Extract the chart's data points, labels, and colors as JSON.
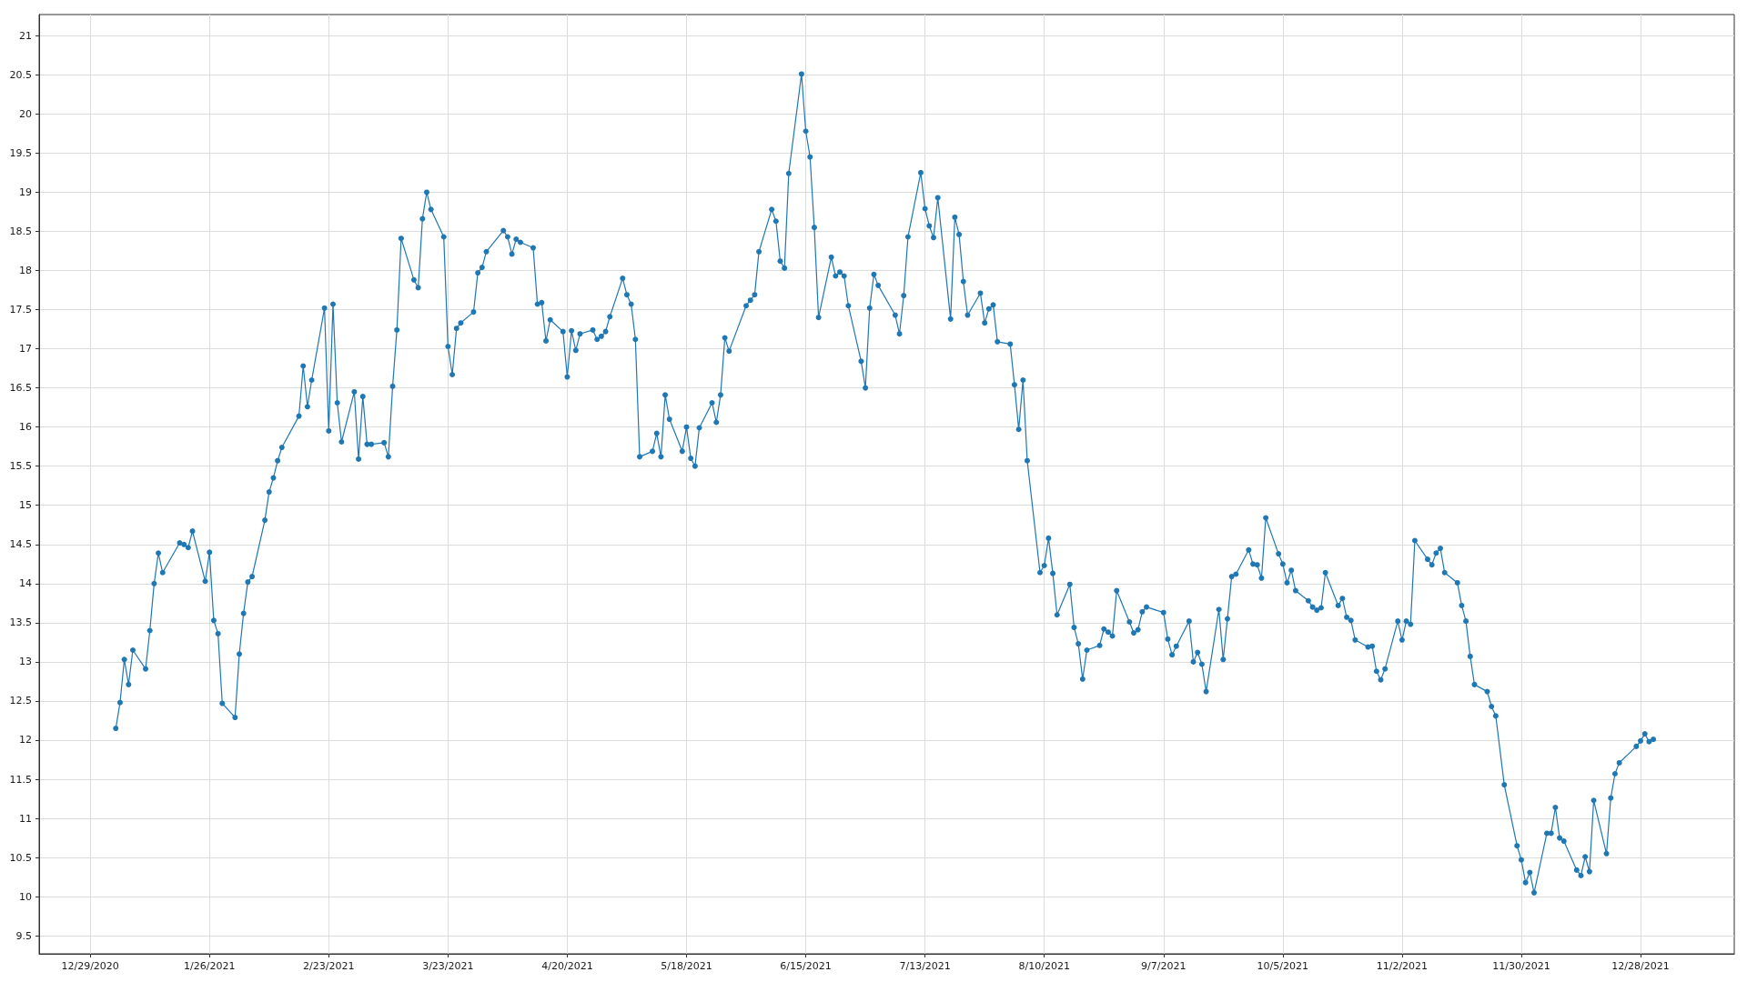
{
  "chart_data": {
    "type": "line",
    "color": "#1f77b4",
    "marker": "circle",
    "line_style": "solid",
    "grid": true,
    "xlim": [
      "2020-12-17",
      "2022-01-19"
    ],
    "xticks": [
      {
        "value": "2020-12-29",
        "label": "12/29/2020"
      },
      {
        "value": "2021-01-26",
        "label": "1/26/2021"
      },
      {
        "value": "2021-02-23",
        "label": "2/23/2021"
      },
      {
        "value": "2021-03-23",
        "label": "3/23/2021"
      },
      {
        "value": "2021-04-20",
        "label": "4/20/2021"
      },
      {
        "value": "2021-05-18",
        "label": "5/18/2021"
      },
      {
        "value": "2021-06-15",
        "label": "6/15/2021"
      },
      {
        "value": "2021-07-13",
        "label": "7/13/2021"
      },
      {
        "value": "2021-08-10",
        "label": "8/10/2021"
      },
      {
        "value": "2021-09-07",
        "label": "9/7/2021"
      },
      {
        "value": "2021-10-05",
        "label": "10/5/2021"
      },
      {
        "value": "2021-11-02",
        "label": "11/2/2021"
      },
      {
        "value": "2021-11-30",
        "label": "11/30/2021"
      },
      {
        "value": "2021-12-28",
        "label": "12/28/2021"
      }
    ],
    "ylim": [
      9.27,
      21.27
    ],
    "yticks": [
      9.5,
      10,
      10.5,
      11,
      11.5,
      12,
      12.5,
      13,
      13.5,
      14,
      14.5,
      15,
      15.5,
      16,
      16.5,
      17,
      17.5,
      18,
      18.5,
      19,
      19.5,
      20,
      20.5,
      21
    ],
    "x": [
      "2021-01-04",
      "2021-01-05",
      "2021-01-06",
      "2021-01-07",
      "2021-01-08",
      "2021-01-11",
      "2021-01-12",
      "2021-01-13",
      "2021-01-14",
      "2021-01-15",
      "2021-01-19",
      "2021-01-20",
      "2021-01-21",
      "2021-01-22",
      "2021-01-25",
      "2021-01-26",
      "2021-01-27",
      "2021-01-28",
      "2021-01-29",
      "2021-02-01",
      "2021-02-02",
      "2021-02-03",
      "2021-02-04",
      "2021-02-05",
      "2021-02-08",
      "2021-02-09",
      "2021-02-10",
      "2021-02-11",
      "2021-02-12",
      "2021-02-16",
      "2021-02-17",
      "2021-02-18",
      "2021-02-19",
      "2021-02-22",
      "2021-02-23",
      "2021-02-24",
      "2021-02-25",
      "2021-02-26",
      "2021-03-01",
      "2021-03-02",
      "2021-03-03",
      "2021-03-04",
      "2021-03-05",
      "2021-03-08",
      "2021-03-09",
      "2021-03-10",
      "2021-03-11",
      "2021-03-12",
      "2021-03-15",
      "2021-03-16",
      "2021-03-17",
      "2021-03-18",
      "2021-03-19",
      "2021-03-22",
      "2021-03-23",
      "2021-03-24",
      "2021-03-25",
      "2021-03-26",
      "2021-03-29",
      "2021-03-30",
      "2021-03-31",
      "2021-04-01",
      "2021-04-05",
      "2021-04-06",
      "2021-04-07",
      "2021-04-08",
      "2021-04-09",
      "2021-04-12",
      "2021-04-13",
      "2021-04-14",
      "2021-04-15",
      "2021-04-16",
      "2021-04-19",
      "2021-04-20",
      "2021-04-21",
      "2021-04-22",
      "2021-04-23",
      "2021-04-26",
      "2021-04-27",
      "2021-04-28",
      "2021-04-29",
      "2021-04-30",
      "2021-05-03",
      "2021-05-04",
      "2021-05-05",
      "2021-05-06",
      "2021-05-07",
      "2021-05-10",
      "2021-05-11",
      "2021-05-12",
      "2021-05-13",
      "2021-05-14",
      "2021-05-17",
      "2021-05-18",
      "2021-05-19",
      "2021-05-20",
      "2021-05-21",
      "2021-05-24",
      "2021-05-25",
      "2021-05-26",
      "2021-05-27",
      "2021-05-28",
      "2021-06-01",
      "2021-06-02",
      "2021-06-03",
      "2021-06-04",
      "2021-06-07",
      "2021-06-08",
      "2021-06-09",
      "2021-06-10",
      "2021-06-11",
      "2021-06-14",
      "2021-06-15",
      "2021-06-16",
      "2021-06-17",
      "2021-06-18",
      "2021-06-21",
      "2021-06-22",
      "2021-06-23",
      "2021-06-24",
      "2021-06-25",
      "2021-06-28",
      "2021-06-29",
      "2021-06-30",
      "2021-07-01",
      "2021-07-02",
      "2021-07-06",
      "2021-07-07",
      "2021-07-08",
      "2021-07-09",
      "2021-07-12",
      "2021-07-13",
      "2021-07-14",
      "2021-07-15",
      "2021-07-16",
      "2021-07-19",
      "2021-07-20",
      "2021-07-21",
      "2021-07-22",
      "2021-07-23",
      "2021-07-26",
      "2021-07-27",
      "2021-07-28",
      "2021-07-29",
      "2021-07-30",
      "2021-08-02",
      "2021-08-03",
      "2021-08-04",
      "2021-08-05",
      "2021-08-06",
      "2021-08-09",
      "2021-08-10",
      "2021-08-11",
      "2021-08-12",
      "2021-08-13",
      "2021-08-16",
      "2021-08-17",
      "2021-08-18",
      "2021-08-19",
      "2021-08-20",
      "2021-08-23",
      "2021-08-24",
      "2021-08-25",
      "2021-08-26",
      "2021-08-27",
      "2021-08-30",
      "2021-08-31",
      "2021-09-01",
      "2021-09-02",
      "2021-09-03",
      "2021-09-07",
      "2021-09-08",
      "2021-09-09",
      "2021-09-10",
      "2021-09-13",
      "2021-09-14",
      "2021-09-15",
      "2021-09-16",
      "2021-09-17",
      "2021-09-20",
      "2021-09-21",
      "2021-09-22",
      "2021-09-23",
      "2021-09-24",
      "2021-09-27",
      "2021-09-28",
      "2021-09-29",
      "2021-09-30",
      "2021-10-01",
      "2021-10-04",
      "2021-10-05",
      "2021-10-06",
      "2021-10-07",
      "2021-10-08",
      "2021-10-11",
      "2021-10-12",
      "2021-10-13",
      "2021-10-14",
      "2021-10-15",
      "2021-10-18",
      "2021-10-19",
      "2021-10-20",
      "2021-10-21",
      "2021-10-22",
      "2021-10-25",
      "2021-10-26",
      "2021-10-27",
      "2021-10-28",
      "2021-10-29",
      "2021-11-01",
      "2021-11-02",
      "2021-11-03",
      "2021-11-04",
      "2021-11-05",
      "2021-11-08",
      "2021-11-09",
      "2021-11-10",
      "2021-11-11",
      "2021-11-12",
      "2021-11-15",
      "2021-11-16",
      "2021-11-17",
      "2021-11-18",
      "2021-11-19",
      "2021-11-22",
      "2021-11-23",
      "2021-11-24",
      "2021-11-26",
      "2021-11-29",
      "2021-11-30",
      "2021-12-01",
      "2021-12-02",
      "2021-12-03",
      "2021-12-06",
      "2021-12-07",
      "2021-12-08",
      "2021-12-09",
      "2021-12-10",
      "2021-12-13",
      "2021-12-14",
      "2021-12-15",
      "2021-12-16",
      "2021-12-17",
      "2021-12-20",
      "2021-12-21",
      "2021-12-22",
      "2021-12-23",
      "2021-12-27",
      "2021-12-28",
      "2021-12-29",
      "2021-12-30",
      "2021-12-31"
    ],
    "values": [
      12.15,
      12.48,
      13.03,
      12.71,
      13.15,
      12.91,
      13.4,
      14.0,
      14.39,
      14.14,
      14.52,
      14.5,
      14.46,
      14.67,
      14.03,
      14.4,
      13.53,
      13.36,
      12.47,
      12.29,
      13.1,
      13.62,
      14.02,
      14.09,
      14.81,
      15.17,
      15.35,
      15.57,
      15.74,
      16.14,
      16.78,
      16.26,
      16.6,
      17.52,
      15.95,
      17.57,
      16.31,
      15.81,
      16.45,
      15.59,
      16.39,
      15.78,
      15.78,
      15.8,
      15.62,
      16.52,
      17.24,
      18.41,
      17.88,
      17.78,
      18.66,
      19.0,
      18.78,
      18.43,
      17.03,
      16.67,
      17.26,
      17.33,
      17.47,
      17.97,
      18.04,
      18.24,
      18.51,
      18.43,
      18.21,
      18.4,
      18.36,
      18.29,
      17.57,
      17.59,
      17.1,
      17.37,
      17.22,
      16.64,
      17.23,
      16.98,
      17.19,
      17.24,
      17.12,
      17.16,
      17.22,
      17.41,
      17.9,
      17.69,
      17.57,
      17.12,
      15.62,
      15.69,
      15.92,
      15.62,
      16.41,
      16.1,
      15.69,
      16.0,
      15.6,
      15.5,
      15.99,
      16.31,
      16.06,
      16.41,
      17.14,
      16.97,
      17.55,
      17.62,
      17.69,
      18.24,
      18.78,
      18.63,
      18.12,
      18.03,
      19.24,
      20.51,
      19.78,
      19.45,
      18.55,
      17.4,
      18.17,
      17.93,
      17.98,
      17.93,
      17.55,
      16.84,
      16.5,
      17.52,
      17.95,
      17.81,
      17.43,
      17.19,
      17.68,
      18.43,
      19.25,
      18.79,
      18.57,
      18.42,
      18.93,
      17.38,
      18.68,
      18.46,
      17.86,
      17.43,
      17.71,
      17.33,
      17.51,
      17.56,
      17.09,
      17.06,
      16.54,
      15.97,
      16.6,
      15.57,
      14.14,
      14.23,
      14.58,
      14.13,
      13.6,
      13.99,
      13.44,
      13.23,
      12.78,
      13.15,
      13.21,
      13.42,
      13.38,
      13.33,
      13.91,
      13.51,
      13.37,
      13.41,
      13.64,
      13.7,
      13.63,
      13.29,
      13.09,
      13.2,
      13.52,
      13.0,
      13.12,
      12.97,
      12.62,
      13.67,
      13.03,
      13.55,
      14.09,
      14.12,
      14.43,
      14.25,
      14.24,
      14.07,
      14.84,
      14.38,
      14.25,
      14.01,
      14.17,
      13.91,
      13.78,
      13.7,
      13.66,
      13.69,
      14.14,
      13.72,
      13.81,
      13.57,
      13.53,
      13.28,
      13.19,
      13.2,
      12.88,
      12.77,
      12.91,
      13.52,
      13.28,
      13.52,
      13.48,
      14.55,
      14.31,
      14.24,
      14.39,
      14.45,
      14.14,
      14.01,
      13.72,
      13.52,
      13.07,
      12.71,
      12.62,
      12.43,
      12.31,
      11.43,
      10.65,
      10.47,
      10.18,
      10.31,
      10.05,
      10.81,
      10.81,
      11.14,
      10.75,
      10.71,
      10.34,
      10.27,
      10.51,
      10.32,
      11.23,
      10.55,
      11.26,
      11.57,
      11.71,
      11.92,
      11.99,
      12.08,
      11.98,
      12.01
    ]
  }
}
